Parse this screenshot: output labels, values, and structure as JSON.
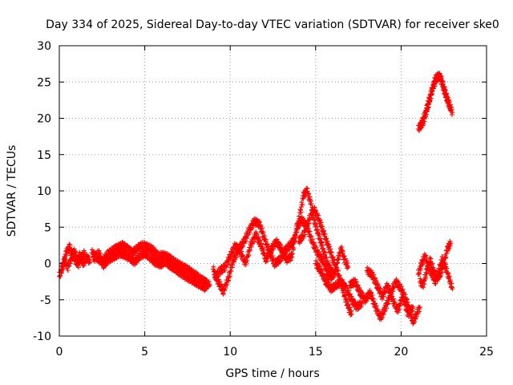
{
  "chart_data": {
    "type": "scatter",
    "title": "Day 334 of 2025, Sidereal Day-to-day VTEC variation (SDTVAR) for receiver ske0",
    "xlabel": "GPS time / hours",
    "ylabel": "SDTVAR / TECUs",
    "xlim": [
      0,
      25
    ],
    "ylim": [
      -10,
      30
    ],
    "xticks": [
      "0",
      "5",
      "10",
      "15",
      "20",
      "25"
    ],
    "yticks": [
      "-10",
      "-5",
      "0",
      "5",
      "10",
      "15",
      "20",
      "25",
      "30"
    ],
    "grid": true,
    "marker": "+",
    "series": [
      {
        "name": "SDTVAR",
        "color": "#ff0000",
        "segments": [
          [
            [
              0.0,
              -1.8
            ],
            [
              0.2,
              -0.5
            ],
            [
              0.4,
              1.5
            ],
            [
              0.6,
              2.3
            ],
            [
              0.8,
              1.0
            ],
            [
              1.0,
              0.2
            ],
            [
              1.2,
              1.2
            ],
            [
              1.4,
              0.0
            ],
            [
              1.6,
              0.8
            ],
            [
              1.8,
              0.3
            ]
          ],
          [
            [
              0.1,
              -1.0
            ],
            [
              0.3,
              0.5
            ],
            [
              0.5,
              -0.5
            ],
            [
              0.7,
              0.8
            ],
            [
              0.9,
              1.8
            ],
            [
              1.1,
              -0.2
            ],
            [
              1.3,
              0.9
            ],
            [
              1.5,
              1.5
            ]
          ],
          [
            [
              1.9,
              1.5
            ],
            [
              2.2,
              0.8
            ],
            [
              2.5,
              0.2
            ],
            [
              2.8,
              1.2
            ],
            [
              3.1,
              1.8
            ],
            [
              3.4,
              2.2
            ],
            [
              3.7,
              2.5
            ],
            [
              4.0,
              2.0
            ],
            [
              4.3,
              1.5
            ],
            [
              4.6,
              2.2
            ],
            [
              4.9,
              2.5
            ],
            [
              5.2,
              2.3
            ],
            [
              5.5,
              1.8
            ],
            [
              5.8,
              1.0
            ],
            [
              6.1,
              1.2
            ],
            [
              6.4,
              0.8
            ],
            [
              6.7,
              0.3
            ],
            [
              7.0,
              -0.2
            ],
            [
              7.3,
              -0.5
            ],
            [
              7.6,
              -1.0
            ],
            [
              7.9,
              -1.5
            ],
            [
              8.2,
              -2.0
            ],
            [
              8.5,
              -2.5
            ],
            [
              8.8,
              -3.0
            ]
          ],
          [
            [
              2.0,
              0.5
            ],
            [
              2.3,
              1.5
            ],
            [
              2.6,
              -0.2
            ],
            [
              2.9,
              0.6
            ],
            [
              3.2,
              0.9
            ],
            [
              3.5,
              1.4
            ],
            [
              3.8,
              1.2
            ],
            [
              4.1,
              0.8
            ],
            [
              4.4,
              0.2
            ],
            [
              4.7,
              1.0
            ],
            [
              5.0,
              1.4
            ],
            [
              5.3,
              0.9
            ],
            [
              5.6,
              0.2
            ],
            [
              5.9,
              -0.2
            ],
            [
              6.2,
              0.3
            ],
            [
              6.5,
              -0.3
            ],
            [
              6.8,
              -0.8
            ],
            [
              7.1,
              -1.3
            ],
            [
              7.4,
              -1.8
            ],
            [
              7.7,
              -2.2
            ],
            [
              8.0,
              -2.6
            ],
            [
              8.3,
              -3.0
            ],
            [
              8.6,
              -3.4
            ]
          ],
          [
            [
              9.0,
              -0.8
            ],
            [
              9.3,
              -2.5
            ],
            [
              9.6,
              -3.8
            ],
            [
              9.9,
              -2.0
            ],
            [
              10.2,
              0.5
            ],
            [
              10.5,
              2.0
            ],
            [
              10.8,
              3.0
            ],
            [
              11.1,
              4.5
            ],
            [
              11.4,
              5.8
            ],
            [
              11.7,
              5.5
            ],
            [
              12.0,
              3.5
            ],
            [
              12.3,
              1.5
            ],
            [
              12.6,
              0.0
            ],
            [
              12.9,
              0.5
            ],
            [
              13.2,
              1.8
            ],
            [
              13.5,
              2.5
            ],
            [
              13.8,
              3.5
            ],
            [
              14.1,
              7.0
            ],
            [
              14.3,
              9.5
            ],
            [
              14.5,
              10.0
            ],
            [
              14.7,
              8.5
            ],
            [
              14.9,
              6.0
            ],
            [
              15.1,
              4.5
            ],
            [
              15.3,
              3.0
            ],
            [
              15.5,
              1.5
            ],
            [
              15.7,
              0.0
            ],
            [
              15.9,
              -1.0
            ],
            [
              16.1,
              -1.5
            ],
            [
              16.3,
              0.5
            ],
            [
              16.5,
              2.0
            ],
            [
              16.7,
              0.5
            ],
            [
              16.9,
              -0.5
            ]
          ],
          [
            [
              9.1,
              -2.0
            ],
            [
              9.4,
              -1.0
            ],
            [
              9.7,
              -0.5
            ],
            [
              10.0,
              1.0
            ],
            [
              10.3,
              2.5
            ],
            [
              10.6,
              1.5
            ],
            [
              10.9,
              0.0
            ],
            [
              11.2,
              2.5
            ],
            [
              11.5,
              4.0
            ],
            [
              11.8,
              2.5
            ],
            [
              12.1,
              0.5
            ],
            [
              12.4,
              2.0
            ],
            [
              12.7,
              3.0
            ],
            [
              13.0,
              2.0
            ],
            [
              13.3,
              0.5
            ],
            [
              13.6,
              1.0
            ],
            [
              13.9,
              5.0
            ],
            [
              14.2,
              6.0
            ],
            [
              14.5,
              5.0
            ],
            [
              14.8,
              3.0
            ],
            [
              15.1,
              1.5
            ],
            [
              15.4,
              0.5
            ],
            [
              15.7,
              -1.5
            ],
            [
              16.0,
              -2.0
            ]
          ],
          [
            [
              14.0,
              3.0
            ],
            [
              14.3,
              4.0
            ],
            [
              14.6,
              6.0
            ],
            [
              14.9,
              7.5
            ],
            [
              15.2,
              6.0
            ],
            [
              15.5,
              4.0
            ],
            [
              15.8,
              2.0
            ],
            [
              16.1,
              0.0
            ],
            [
              16.4,
              -2.0
            ],
            [
              16.7,
              -4.5
            ],
            [
              16.9,
              -6.0
            ],
            [
              17.1,
              -7.0
            ]
          ],
          [
            [
              15.0,
              0.0
            ],
            [
              15.3,
              -1.0
            ],
            [
              15.6,
              -2.5
            ],
            [
              15.9,
              -3.5
            ],
            [
              16.2,
              -3.0
            ],
            [
              16.5,
              -2.5
            ],
            [
              16.8,
              -3.5
            ],
            [
              17.1,
              -5.0
            ],
            [
              17.4,
              -6.0
            ],
            [
              17.7,
              -5.5
            ]
          ],
          [
            [
              17.0,
              -3.0
            ],
            [
              17.3,
              -2.5
            ],
            [
              17.6,
              -4.0
            ],
            [
              17.9,
              -5.0
            ],
            [
              18.2,
              -4.0
            ],
            [
              18.5,
              -6.0
            ],
            [
              18.8,
              -7.5
            ],
            [
              19.1,
              -6.0
            ],
            [
              19.4,
              -4.0
            ],
            [
              19.7,
              -2.5
            ],
            [
              20.0,
              -3.5
            ],
            [
              20.3,
              -5.0
            ],
            [
              20.5,
              -6.5
            ],
            [
              20.7,
              -8.0
            ],
            [
              20.9,
              -7.0
            ],
            [
              21.1,
              -6.0
            ]
          ],
          [
            [
              18.0,
              -1.0
            ],
            [
              18.3,
              -1.5
            ],
            [
              18.6,
              -3.0
            ],
            [
              18.9,
              -4.5
            ],
            [
              19.2,
              -3.0
            ],
            [
              19.5,
              -5.0
            ],
            [
              19.8,
              -6.5
            ],
            [
              20.1,
              -4.5
            ],
            [
              20.4,
              -7.0
            ],
            [
              20.7,
              -6.0
            ]
          ],
          [
            [
              21.0,
              -1.5
            ],
            [
              21.2,
              0.0
            ],
            [
              21.4,
              1.0
            ],
            [
              21.6,
              -0.5
            ],
            [
              21.8,
              -1.5
            ],
            [
              22.0,
              -2.5
            ],
            [
              22.2,
              -1.0
            ],
            [
              22.4,
              0.5
            ],
            [
              22.6,
              -0.5
            ],
            [
              22.8,
              -2.0
            ],
            [
              23.0,
              -3.5
            ]
          ],
          [
            [
              21.1,
              -2.5
            ],
            [
              21.3,
              -3.0
            ],
            [
              21.5,
              -1.0
            ],
            [
              21.7,
              0.5
            ],
            [
              21.9,
              -1.0
            ],
            [
              22.1,
              -2.0
            ],
            [
              22.3,
              -1.5
            ],
            [
              22.5,
              0.0
            ],
            [
              22.7,
              2.0
            ],
            [
              22.9,
              2.8
            ]
          ],
          [
            [
              21.0,
              18.5
            ],
            [
              21.3,
              19.5
            ],
            [
              21.6,
              22.0
            ],
            [
              21.9,
              24.5
            ],
            [
              22.2,
              26.0
            ],
            [
              22.4,
              25.0
            ],
            [
              22.6,
              23.5
            ],
            [
              22.8,
              22.0
            ],
            [
              23.0,
              20.8
            ]
          ],
          [
            [
              21.1,
              18.8
            ],
            [
              21.4,
              20.5
            ],
            [
              21.7,
              23.0
            ],
            [
              22.0,
              25.5
            ],
            [
              22.3,
              25.8
            ],
            [
              22.5,
              24.0
            ],
            [
              22.7,
              22.5
            ],
            [
              22.9,
              21.5
            ]
          ]
        ]
      }
    ]
  }
}
